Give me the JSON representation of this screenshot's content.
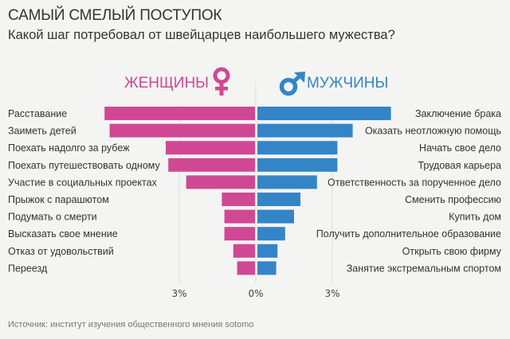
{
  "header": {
    "title": "САМЫЙ СМЕЛЫЙ ПОСТУПОК",
    "subtitle": "Какой шаг потребовал от швейцарцев наибольшего мужества?"
  },
  "footer": {
    "source": "Источник: институт изучения общественного мнения sotomo"
  },
  "chart_data": {
    "type": "bar",
    "orientation": "horizontal-butterfly",
    "title": "САМЫЙ СМЕЛЫЙ ПОСТУПОК",
    "subtitle": "Какой шаг потребовал от швейцарцев наибольшего мужества?",
    "xlabel": "",
    "ylabel": "",
    "unit": "%",
    "xlim": [
      -6,
      6
    ],
    "grid": true,
    "tick_labels": [
      "3%",
      "0%",
      "3%"
    ],
    "tick_values": [
      -3,
      0,
      3
    ],
    "series": [
      {
        "name": "ЖЕНЩИНЫ",
        "color": "#d04893",
        "icon": "female-symbol-icon",
        "side": "left",
        "categories": [
          "Расставание",
          "Заиметь детей",
          "Поехать надолго за рубеж",
          "Поехать путешествовать одному",
          "Участие в социальных проектах",
          "Прыжок с парашютом",
          "Подумать о смерти",
          "Высказать свое мнение",
          "Отказ от удовольствий",
          "Переезд"
        ],
        "values": [
          5.9,
          5.7,
          3.5,
          3.4,
          2.7,
          1.3,
          1.2,
          1.2,
          0.85,
          0.7
        ]
      },
      {
        "name": "МУЖЧИНЫ",
        "color": "#3485c6",
        "icon": "male-symbol-icon",
        "side": "right",
        "categories": [
          "Заключение брака",
          "Оказать неотложную помощь",
          "Начать свое дело",
          "Трудовая карьера",
          "Ответственность за порученное дело",
          "Сменить профессию",
          "Купить дом",
          "Получить дополнительное образование",
          "Открыть свою фирму",
          "Занятие экстремальным спортом"
        ],
        "values": [
          5.3,
          3.8,
          3.2,
          3.2,
          2.4,
          1.75,
          1.5,
          1.15,
          0.85,
          0.8
        ]
      }
    ]
  }
}
